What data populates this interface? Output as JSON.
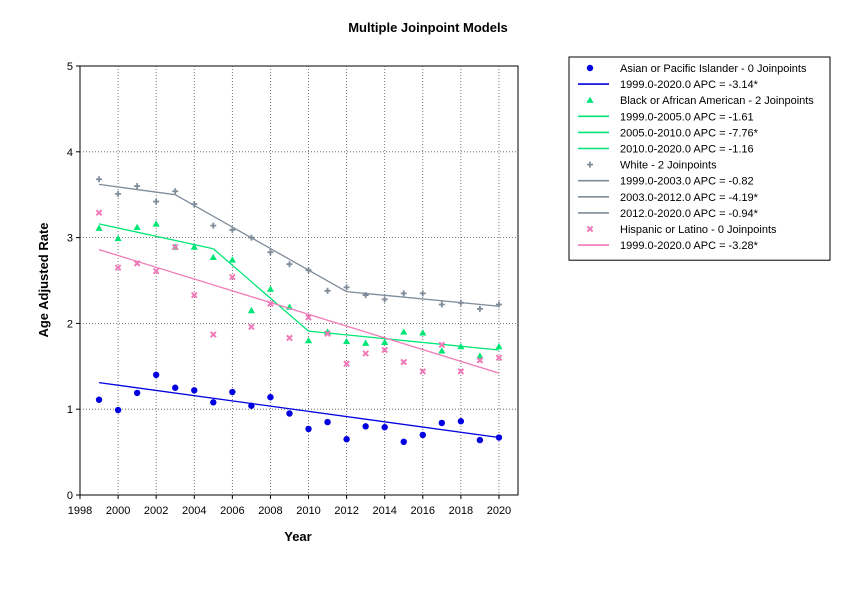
{
  "chart_data": {
    "type": "scatter",
    "title": "Multiple Joinpoint Models",
    "xlabel": "Year",
    "ylabel": "Age Adjusted Rate",
    "xlim": [
      1998,
      2021
    ],
    "ylim": [
      0,
      5
    ],
    "xticks": [
      "1998",
      "2000",
      "2002",
      "2004",
      "2006",
      "2008",
      "2010",
      "2012",
      "2014",
      "2016",
      "2018",
      "2020"
    ],
    "yticks": [
      "0",
      "1",
      "2",
      "3",
      "4",
      "5"
    ],
    "grid": true,
    "legend_position": "right",
    "series": [
      {
        "name": "Asian or Pacific Islander - 0 Joinpoints",
        "marker": "circle",
        "color": "#0000e0",
        "points": [
          [
            1999,
            1.11
          ],
          [
            2000,
            0.99
          ],
          [
            2001,
            1.19
          ],
          [
            2002,
            1.4
          ],
          [
            2003,
            1.25
          ],
          [
            2004,
            1.22
          ],
          [
            2005,
            1.08
          ],
          [
            2006,
            1.2
          ],
          [
            2007,
            1.04
          ],
          [
            2008,
            1.14
          ],
          [
            2009,
            0.95
          ],
          [
            2010,
            0.77
          ],
          [
            2011,
            0.85
          ],
          [
            2012,
            0.65
          ],
          [
            2013,
            0.8
          ],
          [
            2014,
            0.79
          ],
          [
            2015,
            0.62
          ],
          [
            2016,
            0.7
          ],
          [
            2017,
            0.84
          ],
          [
            2018,
            0.86
          ],
          [
            2019,
            0.64
          ],
          [
            2020,
            0.67
          ]
        ],
        "fits": [
          {
            "label": "1999.0-2020.0 APC  =  -3.14*",
            "line": [
              [
                1999,
                1.31
              ],
              [
                2020,
                0.67
              ]
            ]
          }
        ]
      },
      {
        "name": "Black or African American - 2 Joinpoints",
        "marker": "triangle",
        "color": "#00e676",
        "points": [
          [
            1999,
            3.11
          ],
          [
            2000,
            2.99
          ],
          [
            2001,
            3.12
          ],
          [
            2002,
            3.16
          ],
          [
            2003,
            2.89
          ],
          [
            2004,
            2.89
          ],
          [
            2005,
            2.77
          ],
          [
            2006,
            2.74
          ],
          [
            2007,
            2.15
          ],
          [
            2008,
            2.4
          ],
          [
            2009,
            2.19
          ],
          [
            2010,
            1.8
          ],
          [
            2011,
            1.9
          ],
          [
            2012,
            1.79
          ],
          [
            2013,
            1.77
          ],
          [
            2014,
            1.78
          ],
          [
            2015,
            1.9
          ],
          [
            2016,
            1.89
          ],
          [
            2017,
            1.68
          ],
          [
            2018,
            1.73
          ],
          [
            2019,
            1.62
          ],
          [
            2020,
            1.73
          ]
        ],
        "fits": [
          {
            "label": "1999.0-2005.0 APC  =  -1.61",
            "line": [
              [
                1999,
                3.16
              ],
              [
                2005,
                2.87
              ]
            ]
          },
          {
            "label": "2005.0-2010.0 APC  =  -7.76*",
            "line": [
              [
                2005,
                2.87
              ],
              [
                2010,
                1.91
              ]
            ]
          },
          {
            "label": "2010.0-2020.0 APC  =  -1.16",
            "line": [
              [
                2010,
                1.91
              ],
              [
                2020,
                1.69
              ]
            ]
          }
        ]
      },
      {
        "name": "White - 2 Joinpoints",
        "marker": "plus",
        "color": "#7f8c99",
        "points": [
          [
            1999,
            3.68
          ],
          [
            2000,
            3.51
          ],
          [
            2001,
            3.6
          ],
          [
            2002,
            3.42
          ],
          [
            2003,
            3.54
          ],
          [
            2004,
            3.39
          ],
          [
            2005,
            3.14
          ],
          [
            2006,
            3.09
          ],
          [
            2007,
            3.0
          ],
          [
            2008,
            2.83
          ],
          [
            2009,
            2.69
          ],
          [
            2010,
            2.62
          ],
          [
            2011,
            2.38
          ],
          [
            2012,
            2.42
          ],
          [
            2013,
            2.33
          ],
          [
            2014,
            2.28
          ],
          [
            2015,
            2.35
          ],
          [
            2016,
            2.35
          ],
          [
            2017,
            2.22
          ],
          [
            2018,
            2.24
          ],
          [
            2019,
            2.17
          ],
          [
            2020,
            2.22
          ]
        ],
        "fits": [
          {
            "label": "1999.0-2003.0 APC  =  -0.82",
            "line": [
              [
                1999,
                3.62
              ],
              [
                2003,
                3.5
              ]
            ]
          },
          {
            "label": "2003.0-2012.0 APC  =  -4.19*",
            "line": [
              [
                2003,
                3.5
              ],
              [
                2012,
                2.37
              ]
            ]
          },
          {
            "label": "2012.0-2020.0 APC  =  -0.94*",
            "line": [
              [
                2012,
                2.37
              ],
              [
                2020,
                2.2
              ]
            ]
          }
        ]
      },
      {
        "name": "Hispanic or Latino - 0 Joinpoints",
        "marker": "x",
        "color": "#f07ab8",
        "points": [
          [
            1999,
            3.29
          ],
          [
            2000,
            2.65
          ],
          [
            2001,
            2.7
          ],
          [
            2002,
            2.61
          ],
          [
            2003,
            2.89
          ],
          [
            2004,
            2.33
          ],
          [
            2005,
            1.87
          ],
          [
            2006,
            2.54
          ],
          [
            2007,
            1.96
          ],
          [
            2008,
            2.23
          ],
          [
            2009,
            1.83
          ],
          [
            2010,
            2.07
          ],
          [
            2011,
            1.88
          ],
          [
            2012,
            1.53
          ],
          [
            2013,
            1.65
          ],
          [
            2014,
            1.69
          ],
          [
            2015,
            1.55
          ],
          [
            2016,
            1.44
          ],
          [
            2017,
            1.75
          ],
          [
            2018,
            1.44
          ],
          [
            2019,
            1.57
          ],
          [
            2020,
            1.6
          ]
        ],
        "fits": [
          {
            "label": "1999.0-2020.0 APC  =  -3.28*",
            "line": [
              [
                1999,
                2.86
              ],
              [
                2020,
                1.42
              ]
            ]
          }
        ]
      }
    ]
  }
}
